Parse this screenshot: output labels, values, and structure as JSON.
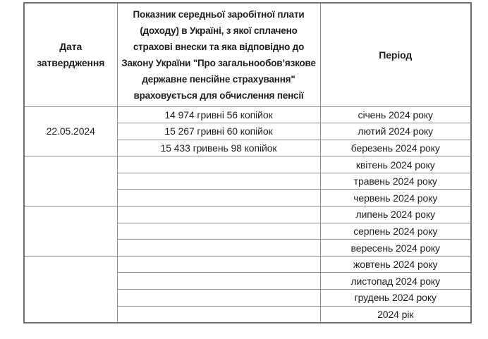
{
  "colors": {
    "background": "#ffffff",
    "text": "#1f1f1f",
    "inner_border": "#8e8e8e",
    "outer_border": "#6f6f6f"
  },
  "table": {
    "header": {
      "date_label": "Дата затвердження",
      "date_label_lines": [
        "Дата",
        "затвердження"
      ],
      "indicator_label": "Показник середньої заробітної плати (доходу) в Україні, з якої сплачено страхові внески та яка відповідно до Закону України \"Про загальнообов’язкове державне пенсійне страхування\" враховується для обчислення пенсії",
      "indicator_lines": [
        "Показник середньої заробітної плати",
        "(доходу) в Україні, з якої сплачено",
        "страхові внески та яка відповідно до",
        "Закону України \"Про загальнообов’язкове",
        "державне пенсійне страхування\"",
        "враховується для обчислення пенсії"
      ],
      "period_label": "Період"
    },
    "groups": [
      {
        "date": "22.05.2024",
        "span": 3
      },
      {
        "date": "",
        "span": 3
      },
      {
        "date": "",
        "span": 3
      },
      {
        "date": "",
        "span": 4
      }
    ],
    "rows": [
      {
        "value": "14 974 гривні 56 копійок",
        "period": "січень 2024 року"
      },
      {
        "value": "15 267 гривні 60 копійок",
        "period": "лютий 2024 року"
      },
      {
        "value": "15 433 гривень 98 копійок",
        "period": "березень 2024 року"
      },
      {
        "value": "",
        "period": "квітень 2024 року"
      },
      {
        "value": "",
        "period": "травень 2024 року"
      },
      {
        "value": "",
        "period": "червень 2024 року"
      },
      {
        "value": "",
        "period": "липень 2024 року"
      },
      {
        "value": "",
        "period": "серпень 2024 року"
      },
      {
        "value": "",
        "period": "вересень 2024 року"
      },
      {
        "value": "",
        "period": "жовтень 2024 року"
      },
      {
        "value": "",
        "period": "листопад 2024 року"
      },
      {
        "value": "",
        "period": "грудень 2024 року"
      },
      {
        "value": "",
        "period": "2024 рік"
      }
    ]
  }
}
